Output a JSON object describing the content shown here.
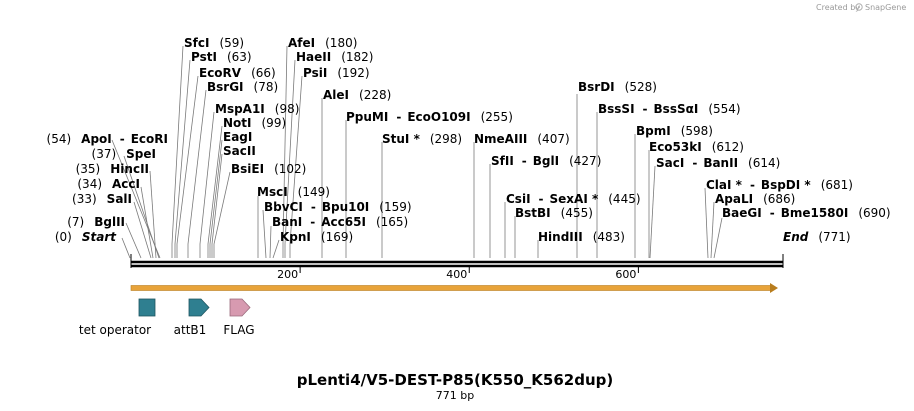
{
  "credit": {
    "text": "Created by",
    "brand": "SnapGene"
  },
  "sites": [
    {
      "name": "SfcI",
      "pos": "(59)"
    },
    {
      "name": "PstI",
      "pos": "(63)"
    },
    {
      "name": "EcoRV",
      "pos": "(66)"
    },
    {
      "name": "BsrGI",
      "pos": "(78)"
    },
    {
      "name": "MspA1I",
      "pos": "(98)"
    },
    {
      "name": "NotI",
      "pos": "(99)"
    },
    {
      "name": "EagI",
      "pos": ""
    },
    {
      "name": "SacII",
      "pos": ""
    },
    {
      "name": "BsiEI",
      "pos": "(102)"
    },
    {
      "name": "AfeI",
      "pos": "(180)"
    },
    {
      "name": "HaeII",
      "pos": "(182)"
    },
    {
      "name": "PsiI",
      "pos": "(192)"
    },
    {
      "name": "AleI",
      "pos": "(228)"
    },
    {
      "name": "PpuMI",
      "alt": "EcoO109I",
      "pos": "(255)"
    },
    {
      "name": "StuI *",
      "pos": "(298)"
    },
    {
      "name": "NmeAIII",
      "pos": "(407)"
    },
    {
      "name": "SfII",
      "alt": "BglI",
      "pos": "(427)"
    },
    {
      "name": "CsiI",
      "alt": "SexAI *",
      "pos": "(445)"
    },
    {
      "name": "BstBI",
      "pos": "(455)"
    },
    {
      "name": "HindIII",
      "pos": "(483)"
    },
    {
      "name": "BsrDI",
      "pos": "(528)"
    },
    {
      "name": "BssSI",
      "alt": "BssSαI",
      "pos": "(554)"
    },
    {
      "name": "BpmI",
      "pos": "(598)"
    },
    {
      "name": "Eco53kI",
      "pos": "(612)"
    },
    {
      "name": "SacI",
      "alt": "BanII",
      "pos": "(614)"
    },
    {
      "name": "ClaI *",
      "alt": "BspDI *",
      "pos": "(681)"
    },
    {
      "name": "ApaLI",
      "pos": "(686)"
    },
    {
      "name": "BaeGI",
      "alt": "Bme1580I",
      "pos": "(690)"
    },
    {
      "name": "End",
      "pos": "(771)"
    },
    {
      "name": "MscI",
      "pos": "(149)"
    },
    {
      "name": "BbvCI",
      "alt": "Bpu10I",
      "pos": "(159)"
    },
    {
      "name": "BanI",
      "alt": "Acc65I",
      "pos": "(165)"
    },
    {
      "name": "KpnI",
      "pos": "(169)"
    },
    {
      "name": "ApoI",
      "alt": "EcoRI",
      "pos": "(54)"
    },
    {
      "name": "SpeI",
      "pos": "(37)"
    },
    {
      "name": "HincII",
      "pos": "(35)"
    },
    {
      "name": "AccI",
      "pos": "(34)"
    },
    {
      "name": "SalI",
      "pos": "(33)"
    },
    {
      "name": "BglII",
      "pos": "(7)"
    },
    {
      "name": "Start",
      "pos": "(0)"
    }
  ],
  "axis": {
    "ticks": [
      {
        "label": "200",
        "bp": 200
      },
      {
        "label": "400",
        "bp": 400
      },
      {
        "label": "600",
        "bp": 600
      }
    ]
  },
  "features": [
    {
      "label": "tet operator",
      "color": "#2f7f90"
    },
    {
      "label": "attB1",
      "color": "#2f7f90"
    },
    {
      "label": "FLAG",
      "color": "#d79ab0"
    }
  ],
  "orf_color": "#e8a33a",
  "plasmid": {
    "name": "pLenti4/V5-DEST-P85(K550_K562dup)",
    "length": "771 bp",
    "bp": 771
  }
}
